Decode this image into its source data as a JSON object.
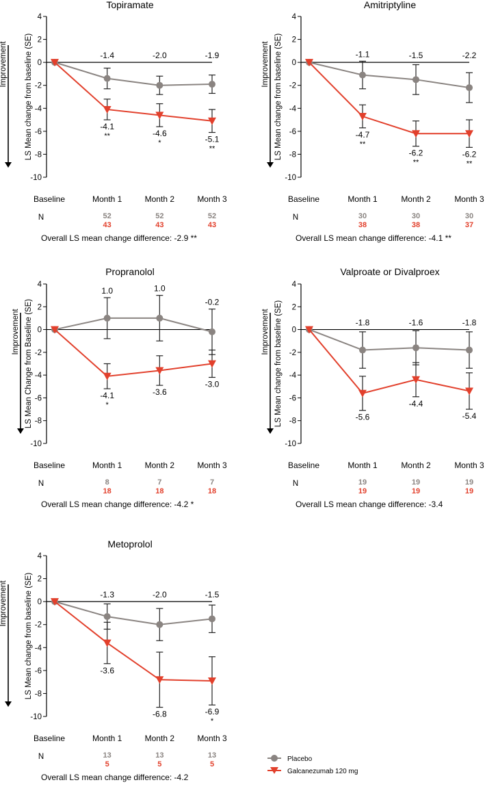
{
  "colors": {
    "placebo": "#8a8481",
    "galcanezumab": "#e2402c",
    "axis": "#000000"
  },
  "legend": {
    "placebo": "Placebo",
    "galcanezumab": "Galcanezumab 120 mg"
  },
  "common": {
    "yticks": [
      "4",
      "2",
      "0",
      "-2",
      "-4",
      "-6",
      "-8",
      "-10"
    ],
    "improvement": "Improvement",
    "n_label": "N"
  },
  "chart_data": [
    {
      "type": "line",
      "title": "Topiramate",
      "ylabel": "LS Mean change from baseline (SE)",
      "categories": [
        "Baseline",
        "Month 1",
        "Month 2",
        "Month 3"
      ],
      "ylim": [
        -10,
        4
      ],
      "series": [
        {
          "name": "Placebo",
          "values": [
            0,
            -1.4,
            -2.0,
            -1.9
          ],
          "se": [
            0,
            0.9,
            0.8,
            0.8
          ],
          "labels": [
            "",
            "-1.4",
            "-2.0",
            "-1.9"
          ],
          "stars": [
            "",
            "",
            "",
            ""
          ],
          "n": [
            "",
            "52",
            "52",
            "52"
          ]
        },
        {
          "name": "Galcanezumab 120 mg",
          "values": [
            0,
            -4.1,
            -4.6,
            -5.1
          ],
          "se": [
            0,
            0.9,
            1.0,
            1.0
          ],
          "labels": [
            "",
            "-4.1",
            "-4.6",
            "-5.1"
          ],
          "stars": [
            "",
            "**",
            "*",
            "**"
          ],
          "n": [
            "",
            "43",
            "43",
            "43"
          ]
        }
      ],
      "overall": "Overall LS mean change difference: -2.9 **"
    },
    {
      "type": "line",
      "title": "Amitriptyline",
      "ylabel": "LS Mean change from baseline (SE)",
      "categories": [
        "Baseline",
        "Month 1",
        "Month 2",
        "Month 3"
      ],
      "ylim": [
        -10,
        4
      ],
      "series": [
        {
          "name": "Placebo",
          "values": [
            0,
            -1.1,
            -1.5,
            -2.2
          ],
          "se": [
            0,
            1.2,
            1.3,
            1.3
          ],
          "labels": [
            "",
            "-1.1",
            "-1.5",
            "-2.2"
          ],
          "stars": [
            "",
            "",
            "",
            ""
          ],
          "n": [
            "",
            "30",
            "30",
            "30"
          ]
        },
        {
          "name": "Galcanezumab 120 mg",
          "values": [
            0,
            -4.7,
            -6.2,
            -6.2
          ],
          "se": [
            0,
            1.0,
            1.1,
            1.2
          ],
          "labels": [
            "",
            "-4.7",
            "-6.2",
            "-6.2"
          ],
          "stars": [
            "",
            "**",
            "**",
            "**"
          ],
          "n": [
            "",
            "38",
            "38",
            "37"
          ]
        }
      ],
      "overall": "Overall LS mean change difference: -4.1 **"
    },
    {
      "type": "line",
      "title": "Propranolol",
      "ylabel": "LS Mean Change from Baseline (SE)",
      "categories": [
        "Baseline",
        "Month 1",
        "Month 2",
        "Month 3"
      ],
      "ylim": [
        -10,
        4
      ],
      "series": [
        {
          "name": "Placebo",
          "values": [
            0,
            1.0,
            1.0,
            -0.2
          ],
          "se": [
            0,
            1.8,
            2.0,
            2.0
          ],
          "labels": [
            "",
            "1.0",
            "1.0",
            "-0.2"
          ],
          "stars": [
            "",
            "",
            "",
            ""
          ],
          "n": [
            "",
            "8",
            "7",
            "7"
          ]
        },
        {
          "name": "Galcanezumab 120 mg",
          "values": [
            0,
            -4.1,
            -3.6,
            -3.0
          ],
          "se": [
            0,
            1.1,
            1.3,
            1.2
          ],
          "labels": [
            "",
            "-4.1",
            "-3.6",
            "-3.0"
          ],
          "stars": [
            "",
            "*",
            "",
            ""
          ],
          "n": [
            "",
            "18",
            "18",
            "18"
          ]
        }
      ],
      "overall": "Overall LS mean change difference: -4.2 *"
    },
    {
      "type": "line",
      "title": "Valproate or Divalproex",
      "ylabel": "LS Mean change from baseline (SE)",
      "categories": [
        "Baseline",
        "Month 1",
        "Month 2",
        "Month 3"
      ],
      "ylim": [
        -10,
        4
      ],
      "series": [
        {
          "name": "Placebo",
          "values": [
            0,
            -1.8,
            -1.6,
            -1.8
          ],
          "se": [
            0,
            1.6,
            1.5,
            1.6
          ],
          "labels": [
            "",
            "-1.8",
            "-1.6",
            "-1.8"
          ],
          "stars": [
            "",
            "",
            "",
            ""
          ],
          "n": [
            "",
            "19",
            "19",
            "19"
          ]
        },
        {
          "name": "Galcanezumab 120 mg",
          "values": [
            0,
            -5.6,
            -4.4,
            -5.4
          ],
          "se": [
            0,
            1.5,
            1.5,
            1.6
          ],
          "labels": [
            "",
            "-5.6",
            "-4.4",
            "-5.4"
          ],
          "stars": [
            "",
            "",
            "",
            ""
          ],
          "n": [
            "",
            "19",
            "19",
            "19"
          ]
        }
      ],
      "overall": "Overall LS mean change difference: -3.4"
    },
    {
      "type": "line",
      "title": "Metoprolol",
      "ylabel": "LS Mean change from baseline (SE)",
      "categories": [
        "Baseline",
        "Month 1",
        "Month 2",
        "Month 3"
      ],
      "ylim": [
        -10,
        4
      ],
      "series": [
        {
          "name": "Placebo",
          "values": [
            0,
            -1.3,
            -2.0,
            -1.5
          ],
          "se": [
            0,
            1.1,
            1.4,
            1.2
          ],
          "labels": [
            "",
            "-1.3",
            "-2.0",
            "-1.5"
          ],
          "stars": [
            "",
            "",
            "",
            ""
          ],
          "n": [
            "",
            "13",
            "13",
            "13"
          ]
        },
        {
          "name": "Galcanezumab 120 mg",
          "values": [
            0,
            -3.6,
            -6.8,
            -6.9
          ],
          "se": [
            0,
            1.8,
            2.4,
            2.1
          ],
          "labels": [
            "",
            "-3.6",
            "-6.8",
            "-6.9"
          ],
          "stars": [
            "",
            "",
            "",
            "*"
          ],
          "n": [
            "",
            "5",
            "5",
            "5"
          ]
        }
      ],
      "overall": "Overall LS mean change difference: -4.2"
    }
  ]
}
